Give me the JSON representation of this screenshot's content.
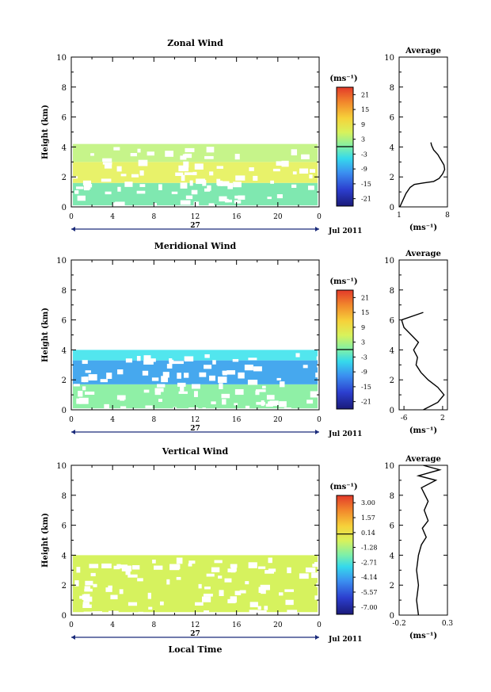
{
  "xaxis": {
    "ticks": [
      "0",
      "4",
      "8",
      "12",
      "16",
      "20",
      "0"
    ],
    "date_day": "27",
    "date_month": "Jul 2011",
    "xlabel": "Local Time"
  },
  "chart_data": [
    {
      "type": "heatmap",
      "title": "Zonal Wind",
      "ylabel": "Height (km)",
      "ylim": [
        0,
        10
      ],
      "yticks": [
        "0",
        "2",
        "4",
        "6",
        "8",
        "10"
      ],
      "xlim": [
        0,
        24
      ],
      "grid": false,
      "data_top_km": 4.2,
      "colorbar": {
        "unit_label": "(ms⁻¹)",
        "ticks": [
          "21",
          "15",
          "9",
          "3",
          "-3",
          "-9",
          "-15",
          "-21"
        ],
        "range": [
          -24,
          24
        ]
      },
      "bands": [
        {
          "from_km": 0.1,
          "to_km": 1.6,
          "color": "#7fe8b0"
        },
        {
          "from_km": 1.6,
          "to_km": 3.0,
          "color": "#e8f26a"
        },
        {
          "from_km": 3.0,
          "to_km": 4.2,
          "color": "#c6f48a"
        }
      ],
      "average": {
        "title": "Average",
        "xlabel": "(ms⁻¹)",
        "xticks": [
          "1",
          "8"
        ],
        "xlim": [
          1,
          8
        ],
        "ylim": [
          0,
          10
        ],
        "yticks": [
          "0",
          "2",
          "4",
          "6",
          "8",
          "10"
        ],
        "profile": [
          [
            1.1,
            0.0
          ],
          [
            1.6,
            0.5
          ],
          [
            2.0,
            0.9
          ],
          [
            2.6,
            1.3
          ],
          [
            3.2,
            1.5
          ],
          [
            4.5,
            1.6
          ],
          [
            6.0,
            1.7
          ],
          [
            6.8,
            1.9
          ],
          [
            7.3,
            2.2
          ],
          [
            7.6,
            2.5
          ],
          [
            7.5,
            2.8
          ],
          [
            7.1,
            3.1
          ],
          [
            6.6,
            3.5
          ],
          [
            6.0,
            3.8
          ],
          [
            5.7,
            4.1
          ],
          [
            5.6,
            4.3
          ]
        ]
      }
    },
    {
      "type": "heatmap",
      "title": "Meridional Wind",
      "ylabel": "Height (km)",
      "ylim": [
        0,
        10
      ],
      "yticks": [
        "0",
        "2",
        "4",
        "6",
        "8",
        "10"
      ],
      "xlim": [
        0,
        24
      ],
      "grid": false,
      "data_top_km": 4.0,
      "colorbar": {
        "unit_label": "(ms⁻¹)",
        "ticks": [
          "21",
          "15",
          "9",
          "3",
          "-3",
          "-9",
          "-15",
          "-21"
        ],
        "range": [
          -24,
          24
        ]
      },
      "bands": [
        {
          "from_km": 0.1,
          "to_km": 1.7,
          "color": "#8ff0a6"
        },
        {
          "from_km": 1.7,
          "to_km": 3.3,
          "color": "#46a8ee"
        },
        {
          "from_km": 3.3,
          "to_km": 4.0,
          "color": "#52e6ee"
        }
      ],
      "average": {
        "title": "Average",
        "xlabel": "(ms⁻¹)",
        "xticks": [
          "-6",
          "2"
        ],
        "xlim": [
          -7,
          3
        ],
        "ylim": [
          0,
          10
        ],
        "yticks": [
          "0",
          "2",
          "4",
          "6",
          "8",
          "10"
        ],
        "profile": [
          [
            -2.0,
            0.0
          ],
          [
            1.0,
            0.5
          ],
          [
            2.3,
            1.0
          ],
          [
            1.0,
            1.5
          ],
          [
            -1.0,
            2.0
          ],
          [
            -2.5,
            2.5
          ],
          [
            -3.5,
            3.0
          ],
          [
            -3.2,
            3.5
          ],
          [
            -4.0,
            4.0
          ],
          [
            -3.0,
            4.5
          ],
          [
            -4.5,
            5.0
          ],
          [
            -6.0,
            5.5
          ],
          [
            -6.5,
            6.0
          ],
          [
            -2.0,
            6.5
          ]
        ]
      }
    },
    {
      "type": "heatmap",
      "title": "Vertical Wind",
      "ylabel": "Height (km)",
      "ylim": [
        0,
        10
      ],
      "yticks": [
        "0",
        "2",
        "4",
        "6",
        "8",
        "10"
      ],
      "xlim": [
        0,
        24
      ],
      "grid": false,
      "data_top_km": 4.0,
      "colorbar": {
        "unit_label": "(ms⁻¹)",
        "ticks": [
          "3.00",
          "1.57",
          "0.14",
          "-1.28",
          "-2.71",
          "-4.14",
          "-5.57",
          "-7.00"
        ],
        "range": [
          -7.7,
          3.7
        ]
      },
      "bands": [
        {
          "from_km": 0.2,
          "to_km": 4.0,
          "color": "#d6f25e"
        }
      ],
      "average": {
        "title": "Average",
        "xlabel": "(ms⁻¹)",
        "xticks": [
          "-0.2",
          "0.3"
        ],
        "xlim": [
          -0.2,
          0.3
        ],
        "ylim": [
          0,
          10
        ],
        "yticks": [
          "0",
          "2",
          "4",
          "6",
          "8",
          "10"
        ],
        "profile": [
          [
            0.0,
            0.0
          ],
          [
            -0.02,
            1.0
          ],
          [
            0.0,
            2.0
          ],
          [
            -0.02,
            3.0
          ],
          [
            0.0,
            4.0
          ],
          [
            0.03,
            4.7
          ],
          [
            0.08,
            5.2
          ],
          [
            0.04,
            5.8
          ],
          [
            0.1,
            6.3
          ],
          [
            0.06,
            7.0
          ],
          [
            0.1,
            7.6
          ],
          [
            0.03,
            8.5
          ],
          [
            0.18,
            9.0
          ],
          [
            0.0,
            9.3
          ],
          [
            0.22,
            9.7
          ],
          [
            0.05,
            10.0
          ]
        ]
      }
    }
  ]
}
